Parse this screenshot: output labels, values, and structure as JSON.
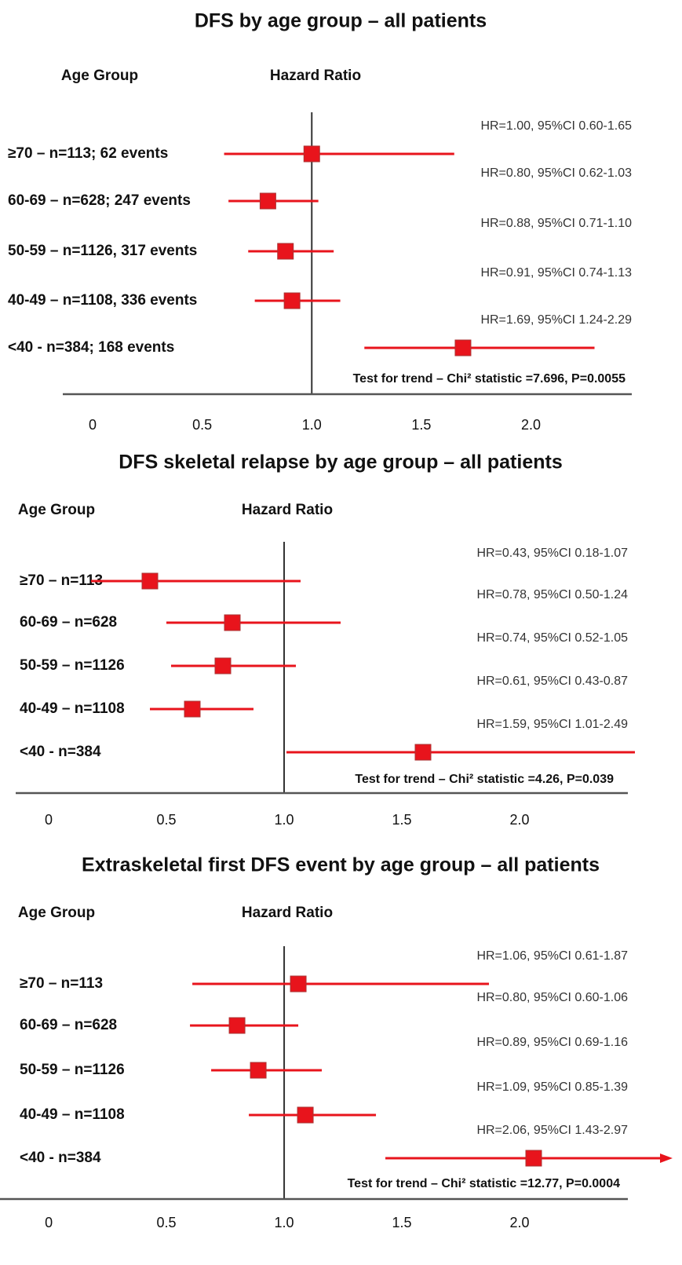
{
  "chart_data": [
    {
      "type": "forest",
      "title": "DFS by age group – all patients",
      "y_label": "Age Group",
      "x_label": "Hazard Ratio",
      "categories": [
        "≥70 – n=113; 62 events",
        "60-69 – n=628; 247 events",
        "50-59 – n=1126, 317 events",
        "40-49 – n=1108, 336 events",
        "<40 - n=384; 168 events"
      ],
      "values": [
        1.0,
        0.8,
        0.88,
        0.91,
        1.69
      ],
      "ci_low": [
        0.6,
        0.62,
        0.71,
        0.74,
        1.24
      ],
      "ci_high": [
        1.65,
        1.03,
        1.1,
        1.13,
        2.29
      ],
      "value_labels": [
        "HR=1.00, 95%CI 0.60-1.65",
        "HR=0.80, 95%CI 0.62-1.03",
        "HR=0.88, 95%CI 0.71-1.10",
        "HR=0.91, 95%CI 0.74-1.13",
        "HR=1.69, 95%CI 1.24-2.29"
      ],
      "annotation": "Test for trend – Chi² statistic =7.696, P=0.0055",
      "color": "#e8141c",
      "reference": 1,
      "xlim": [
        -0.136,
        2.46
      ],
      "xticks": [
        0,
        0.5,
        {
          "value": 1,
          "label": "1.0"
        },
        1.5,
        {
          "value": 2,
          "label": "2.0"
        }
      ]
    },
    {
      "type": "forest",
      "title": "DFS skeletal relapse by age group – all patients",
      "y_label": "Age Group",
      "x_label": "Hazard Ratio",
      "categories": [
        "≥70 – n=113",
        "60-69 – n=628",
        "50-59 – n=1126",
        "40-49 – n=1108",
        "<40 - n=384"
      ],
      "values": [
        0.43,
        0.78,
        0.74,
        0.61,
        1.59
      ],
      "ci_low": [
        0.18,
        0.5,
        0.52,
        0.43,
        1.01
      ],
      "ci_high": [
        1.07,
        1.24,
        1.05,
        0.87,
        2.49
      ],
      "value_labels": [
        "HR=0.43, 95%CI 0.18-1.07",
        "HR=0.78, 95%CI 0.50-1.24",
        "HR=0.74, 95%CI 0.52-1.05",
        "HR=0.61, 95%CI 0.43-0.87",
        "HR=1.59, 95%CI 1.01-2.49"
      ],
      "annotation": "Test for trend – Chi² statistic =4.26, P=0.039",
      "color": "#e8141c",
      "reference": 1,
      "xlim": [
        -0.14,
        2.46
      ],
      "xticks": [
        0,
        0.5,
        {
          "value": 1,
          "label": "1.0"
        },
        1.5,
        {
          "value": 2,
          "label": "2.0"
        }
      ]
    },
    {
      "type": "forest",
      "title": "Extraskeletal first DFS event by age group – all patients",
      "y_label": "Age Group",
      "x_label": "Hazard Ratio",
      "categories": [
        "≥70 – n=113",
        "60-69 – n=628",
        "50-59 – n=1126",
        "40-49 – n=1108",
        "<40 - n=384"
      ],
      "values": [
        1.06,
        0.8,
        0.89,
        1.09,
        2.06
      ],
      "ci_low": [
        0.61,
        0.6,
        0.69,
        0.85,
        1.43
      ],
      "ci_high": [
        1.87,
        1.06,
        1.16,
        1.39,
        2.97
      ],
      "value_labels": [
        "HR=1.06, 95%CI 0.61-1.87",
        "HR=0.80, 95%CI 0.60-1.06",
        "HR=0.89, 95%CI 0.69-1.16",
        "HR=1.09, 95%CI 0.85-1.39",
        "HR=2.06, 95%CI 1.43-2.97"
      ],
      "annotation": "Test for trend – Chi² statistic =12.77, P=0.0004",
      "color": "#e8141c",
      "reference": 1,
      "xlim": [
        -0.207,
        2.46
      ],
      "xticks": [
        0,
        0.5,
        {
          "value": 1,
          "label": "1.0"
        },
        1.5,
        {
          "value": 2,
          "label": "2.0"
        }
      ]
    }
  ]
}
